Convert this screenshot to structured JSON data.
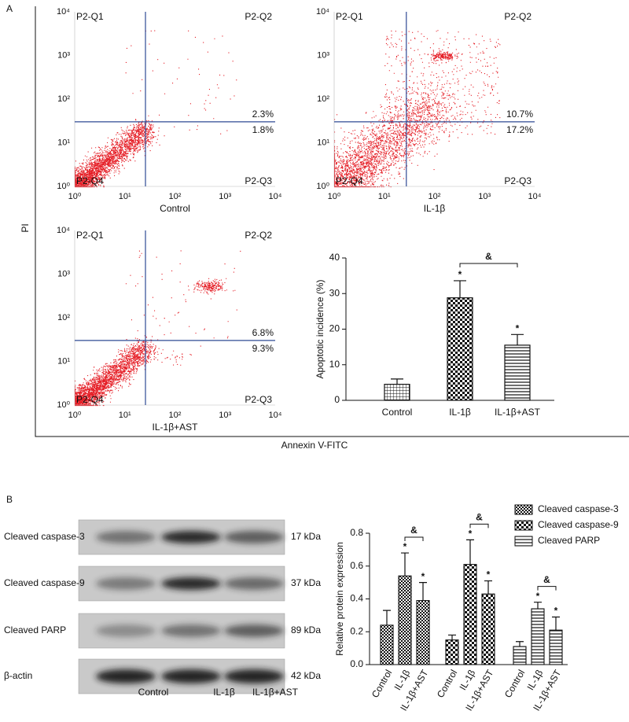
{
  "panel_labels": [
    "A",
    "B"
  ],
  "flow_cytometry": {
    "y_axis_label": "PI",
    "x_axis_label": "Annexin V-FITC",
    "ticks": [
      "10⁰",
      "10¹",
      "10²",
      "10³",
      "10⁴"
    ],
    "quadrant_labels": [
      "P2-Q1",
      "P2-Q2",
      "P2-Q3",
      "P2-Q4"
    ],
    "plots": [
      {
        "caption": "Control",
        "q2": "2.3%",
        "q3": "1.8%"
      },
      {
        "caption": "IL-1β",
        "q2": "10.7%",
        "q3": "17.2%"
      },
      {
        "caption": "IL-1β+AST",
        "q2": "6.8%",
        "q3": "9.3%"
      }
    ]
  },
  "western_blot": {
    "rows": [
      {
        "label": "Cleaved caspase-3",
        "size": "17 kDa"
      },
      {
        "label": "Cleaved caspase-9",
        "size": "37 kDa"
      },
      {
        "label": "Cleaved PARP",
        "size": "89 kDa"
      },
      {
        "label": "β-actin",
        "size": "42 kDa"
      }
    ],
    "columns": [
      "Control",
      "IL-1β",
      "IL-1β+AST"
    ]
  },
  "chart_data": [
    {
      "type": "bar",
      "ylabel": "Apoptotic incidence (%)",
      "categories": [
        "Control",
        "IL-1β",
        "IL-1β+AST"
      ],
      "values": [
        4.5,
        28.8,
        15.5
      ],
      "errors": [
        1.5,
        4.8,
        3.0
      ],
      "patterns": [
        "grid",
        "checker",
        "hlines"
      ],
      "markers": [
        null,
        "*",
        "*"
      ],
      "bracket_label": "&",
      "ylim": [
        0,
        40
      ],
      "yticks": [
        0,
        10,
        20,
        30,
        40
      ],
      "color": "#111111"
    },
    {
      "type": "grouped_bar",
      "ylabel": "Relative protein expression",
      "categories": [
        "Control",
        "IL-1β",
        "IL-1β+AST"
      ],
      "series": [
        {
          "name": "Cleaved caspase-3",
          "pattern": "checkfine",
          "values": [
            0.24,
            0.54,
            0.39
          ],
          "errors": [
            0.09,
            0.14,
            0.11
          ],
          "markers": [
            null,
            "*",
            "*"
          ],
          "bracket_label": "&"
        },
        {
          "name": "Cleaved caspase-9",
          "pattern": "checker",
          "values": [
            0.15,
            0.61,
            0.43
          ],
          "errors": [
            0.03,
            0.15,
            0.08
          ],
          "markers": [
            null,
            "*",
            "*"
          ],
          "bracket_label": "&"
        },
        {
          "name": "Cleaved PARP",
          "pattern": "hlines",
          "values": [
            0.11,
            0.34,
            0.21
          ],
          "errors": [
            0.03,
            0.04,
            0.08
          ],
          "markers": [
            null,
            "*",
            "*"
          ],
          "bracket_label": "&"
        }
      ],
      "ylim": [
        0,
        0.8
      ],
      "yticks": [
        {
          "value": 0,
          "label": "0.0"
        },
        0.2,
        0.4,
        0.6,
        0.8
      ],
      "color": "#111111"
    }
  ]
}
